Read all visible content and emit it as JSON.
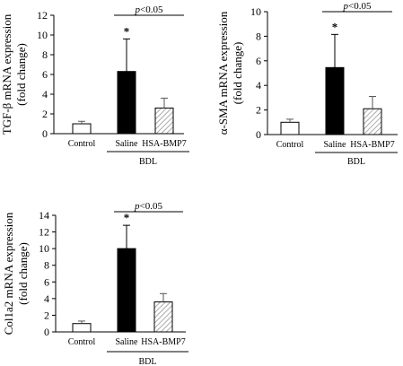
{
  "colors": {
    "control": "#ffffff",
    "saline": "#000000",
    "bmp7_hatch": "#888888",
    "axis": "#000000"
  },
  "chart_data": [
    {
      "type": "bar",
      "categories": [
        "Control",
        "Saline",
        "HSA-BMP7"
      ],
      "values": [
        1.0,
        6.3,
        2.6
      ],
      "errors": [
        0.25,
        3.3,
        1.0
      ],
      "fills": [
        "white",
        "black",
        "hatch"
      ],
      "ylabel": [
        "TGF-β mRNA expression",
        "(fold change)"
      ],
      "ylim": [
        0,
        12
      ],
      "yticks": [
        0,
        2,
        4,
        6,
        8,
        10,
        12
      ],
      "group_label": "BDL",
      "group_categories": [
        1,
        2
      ],
      "significance": {
        "text": "p<0.05",
        "between": [
          1,
          2
        ]
      },
      "star": {
        "text": "*",
        "category": 1
      }
    },
    {
      "type": "bar",
      "categories": [
        "Control",
        "Saline",
        "HSA-BMP7"
      ],
      "values": [
        1.0,
        5.45,
        2.1
      ],
      "errors": [
        0.25,
        2.7,
        1.0
      ],
      "fills": [
        "white",
        "black",
        "hatch"
      ],
      "ylabel": [
        "α-SMA mRNA expression",
        "(fold change)"
      ],
      "ylim": [
        0,
        10
      ],
      "yticks": [
        0,
        2,
        4,
        6,
        8,
        10
      ],
      "group_label": "BDL",
      "group_categories": [
        1,
        2
      ],
      "significance": {
        "text": "p<0.05",
        "between": [
          1,
          2
        ]
      },
      "star": {
        "text": "*",
        "category": 1
      }
    },
    {
      "type": "bar",
      "categories": [
        "Control",
        "Saline",
        "HSA-BMP7"
      ],
      "values": [
        1.0,
        10.0,
        3.6
      ],
      "errors": [
        0.3,
        2.8,
        1.0
      ],
      "fills": [
        "white",
        "black",
        "hatch"
      ],
      "ylabel": [
        "Col1a2 mRNA expression",
        "(fold change)"
      ],
      "ylim": [
        0,
        14
      ],
      "yticks": [
        0,
        2,
        4,
        6,
        8,
        10,
        12,
        14
      ],
      "group_label": "BDL",
      "group_categories": [
        1,
        2
      ],
      "significance": {
        "text": "p<0.05",
        "between": [
          1,
          2
        ]
      },
      "star": {
        "text": "*",
        "category": 1
      }
    }
  ]
}
